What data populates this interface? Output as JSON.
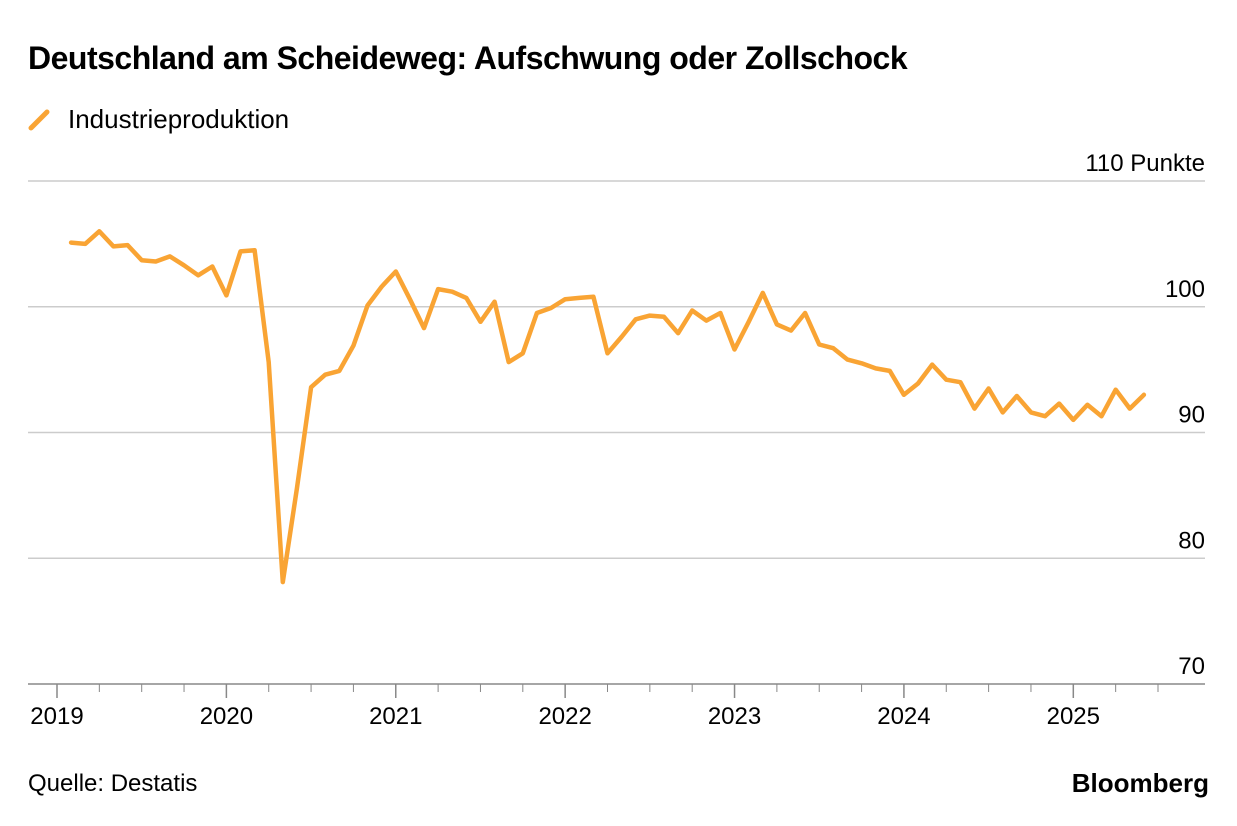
{
  "title": "Deutschland am Scheideweg: Aufschwung oder Zollschock",
  "legend": {
    "label": "Industrieproduktion",
    "icon": "line-swatch-icon"
  },
  "source": "Quelle: Destatis",
  "brand": "Bloomberg",
  "colors": {
    "series": "#f9a434",
    "grid": "#cccccc",
    "axis": "#888888",
    "text": "#000000"
  },
  "chart_data": {
    "type": "line",
    "title": "Deutschland am Scheideweg: Aufschwung oder Zollschock",
    "ylabel": "Punkte",
    "ylim": [
      70,
      110
    ],
    "yticks": [
      {
        "value": 110,
        "label": "110 Punkte"
      },
      {
        "value": 100,
        "label": "100"
      },
      {
        "value": 90,
        "label": "90"
      },
      {
        "value": 80,
        "label": "80"
      },
      {
        "value": 70,
        "label": "70"
      }
    ],
    "xlim": [
      "2019-01",
      "2025-07"
    ],
    "xticks": [
      {
        "date": "2019-01",
        "label": "2019"
      },
      {
        "date": "2020-01",
        "label": "2020"
      },
      {
        "date": "2021-01",
        "label": "2021"
      },
      {
        "date": "2022-01",
        "label": "2022"
      },
      {
        "date": "2023-01",
        "label": "2023"
      },
      {
        "date": "2024-01",
        "label": "2024"
      },
      {
        "date": "2025-01",
        "label": "2025"
      }
    ],
    "grid": true,
    "legend_position": "top-left",
    "series": [
      {
        "name": "Industrieproduktion",
        "color": "#f9a434",
        "x": [
          "2019-02",
          "2019-03",
          "2019-04",
          "2019-05",
          "2019-06",
          "2019-07",
          "2019-08",
          "2019-09",
          "2019-10",
          "2019-11",
          "2019-12",
          "2020-01",
          "2020-02",
          "2020-03",
          "2020-04",
          "2020-05",
          "2020-06",
          "2020-07",
          "2020-08",
          "2020-09",
          "2020-10",
          "2020-11",
          "2020-12",
          "2021-01",
          "2021-02",
          "2021-03",
          "2021-04",
          "2021-05",
          "2021-06",
          "2021-07",
          "2021-08",
          "2021-09",
          "2021-10",
          "2021-11",
          "2021-12",
          "2022-01",
          "2022-02",
          "2022-03",
          "2022-04",
          "2022-05",
          "2022-06",
          "2022-07",
          "2022-08",
          "2022-09",
          "2022-10",
          "2022-11",
          "2022-12",
          "2023-01",
          "2023-02",
          "2023-03",
          "2023-04",
          "2023-05",
          "2023-06",
          "2023-07",
          "2023-08",
          "2023-09",
          "2023-10",
          "2023-11",
          "2023-12",
          "2024-01",
          "2024-02",
          "2024-03",
          "2024-04",
          "2024-05",
          "2024-06",
          "2024-07",
          "2024-08",
          "2024-09",
          "2024-10",
          "2024-11",
          "2024-12",
          "2025-01",
          "2025-02",
          "2025-03",
          "2025-04",
          "2025-05",
          "2025-06"
        ],
        "values": [
          105.1,
          105.0,
          106.0,
          104.8,
          104.9,
          103.7,
          103.6,
          104.0,
          103.3,
          102.5,
          103.2,
          100.9,
          104.4,
          104.5,
          95.6,
          78.1,
          85.6,
          93.6,
          94.6,
          94.9,
          96.9,
          100.1,
          101.6,
          102.8,
          100.6,
          98.3,
          101.4,
          101.2,
          100.7,
          98.8,
          100.4,
          95.6,
          96.3,
          99.5,
          99.9,
          100.6,
          100.7,
          100.8,
          96.3,
          97.6,
          99.0,
          99.3,
          99.2,
          97.9,
          99.7,
          98.9,
          99.5,
          96.6,
          98.8,
          101.1,
          98.6,
          98.1,
          99.5,
          97.0,
          96.7,
          95.8,
          95.5,
          95.1,
          94.9,
          93.0,
          93.9,
          95.4,
          94.2,
          94.0,
          91.9,
          93.5,
          91.6,
          92.9,
          91.6,
          91.3,
          92.3,
          91.0,
          92.2,
          91.3,
          93.4,
          91.9,
          93.0
        ]
      }
    ]
  }
}
